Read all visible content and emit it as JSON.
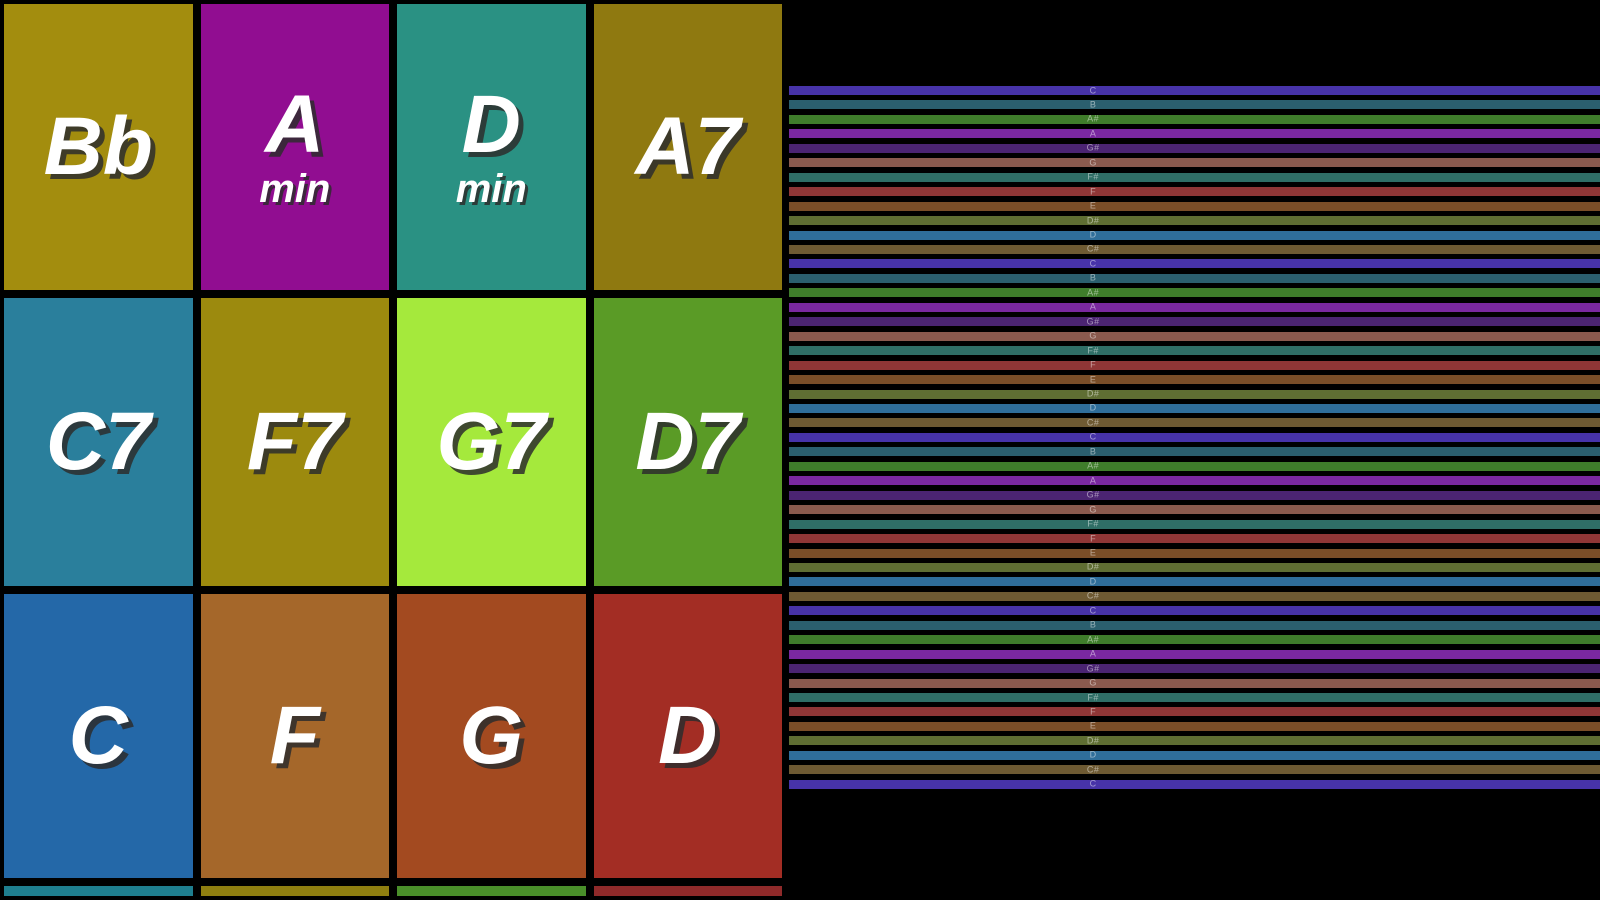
{
  "chord_grid": {
    "rows": [
      [
        {
          "label": "Bb",
          "sub": "",
          "color": "#a38d0e"
        },
        {
          "label": "A",
          "sub": "min",
          "color": "#910d91"
        },
        {
          "label": "D",
          "sub": "min",
          "color": "#2a9183"
        },
        {
          "label": "A7",
          "sub": "",
          "color": "#8f7910"
        }
      ],
      [
        {
          "label": "C7",
          "sub": "",
          "color": "#2a7f9c"
        },
        {
          "label": "F7",
          "sub": "",
          "color": "#9c8a0e"
        },
        {
          "label": "G7",
          "sub": "",
          "color": "#a5e93c"
        },
        {
          "label": "D7",
          "sub": "",
          "color": "#5a9b26"
        }
      ],
      [
        {
          "label": "C",
          "sub": "",
          "color": "#2468a8"
        },
        {
          "label": "F",
          "sub": "",
          "color": "#a5672a"
        },
        {
          "label": "G",
          "sub": "",
          "color": "#a34a20"
        },
        {
          "label": "D",
          "sub": "",
          "color": "#a32d24"
        }
      ]
    ],
    "sliver": [
      {
        "color": "#1f7f8f"
      },
      {
        "color": "#8f7f10"
      },
      {
        "color": "#4a8f2a"
      },
      {
        "color": "#8f2a2a"
      }
    ]
  },
  "strings": {
    "items": [
      {
        "note": "C",
        "color": "#4733a8"
      },
      {
        "note": "B",
        "color": "#2b5f6e"
      },
      {
        "note": "A#",
        "color": "#3f7d2b"
      },
      {
        "note": "A",
        "color": "#7a28a0"
      },
      {
        "note": "G#",
        "color": "#4b2472"
      },
      {
        "note": "G",
        "color": "#8a5a4e"
      },
      {
        "note": "F#",
        "color": "#2f6e66"
      },
      {
        "note": "F",
        "color": "#8f3636"
      },
      {
        "note": "E",
        "color": "#7a4e28"
      },
      {
        "note": "D#",
        "color": "#5f6e33"
      },
      {
        "note": "D",
        "color": "#2f6e9a"
      },
      {
        "note": "C#",
        "color": "#6e5a33"
      },
      {
        "note": "C",
        "color": "#4733a8"
      },
      {
        "note": "B",
        "color": "#2b5f6e"
      },
      {
        "note": "A#",
        "color": "#3f7d2b"
      },
      {
        "note": "A",
        "color": "#7a28a0"
      },
      {
        "note": "G#",
        "color": "#4b2472"
      },
      {
        "note": "G",
        "color": "#8a5a4e"
      },
      {
        "note": "F#",
        "color": "#2f6e66"
      },
      {
        "note": "F",
        "color": "#8f3636"
      },
      {
        "note": "E",
        "color": "#7a4e28"
      },
      {
        "note": "D#",
        "color": "#5f6e33"
      },
      {
        "note": "D",
        "color": "#2f6e9a"
      },
      {
        "note": "C#",
        "color": "#6e5a33"
      },
      {
        "note": "C",
        "color": "#4733a8"
      },
      {
        "note": "B",
        "color": "#2b5f6e"
      },
      {
        "note": "A#",
        "color": "#3f7d2b"
      },
      {
        "note": "A",
        "color": "#7a28a0"
      },
      {
        "note": "G#",
        "color": "#4b2472"
      },
      {
        "note": "G",
        "color": "#8a5a4e"
      },
      {
        "note": "F#",
        "color": "#2f6e66"
      },
      {
        "note": "F",
        "color": "#8f3636"
      },
      {
        "note": "E",
        "color": "#7a4e28"
      },
      {
        "note": "D#",
        "color": "#5f6e33"
      },
      {
        "note": "D",
        "color": "#2f6e9a"
      },
      {
        "note": "C#",
        "color": "#6e5a33"
      },
      {
        "note": "C",
        "color": "#4733a8"
      },
      {
        "note": "B",
        "color": "#2b5f6e"
      },
      {
        "note": "A#",
        "color": "#3f7d2b"
      },
      {
        "note": "A",
        "color": "#7a28a0"
      },
      {
        "note": "G#",
        "color": "#4b2472"
      },
      {
        "note": "G",
        "color": "#8a5a4e"
      },
      {
        "note": "F#",
        "color": "#2f6e66"
      },
      {
        "note": "F",
        "color": "#8f3636"
      },
      {
        "note": "E",
        "color": "#7a4e28"
      },
      {
        "note": "D#",
        "color": "#5f6e33"
      },
      {
        "note": "D",
        "color": "#2f6e9a"
      },
      {
        "note": "C#",
        "color": "#6e5a33"
      },
      {
        "note": "C",
        "color": "#4733a8"
      }
    ]
  }
}
